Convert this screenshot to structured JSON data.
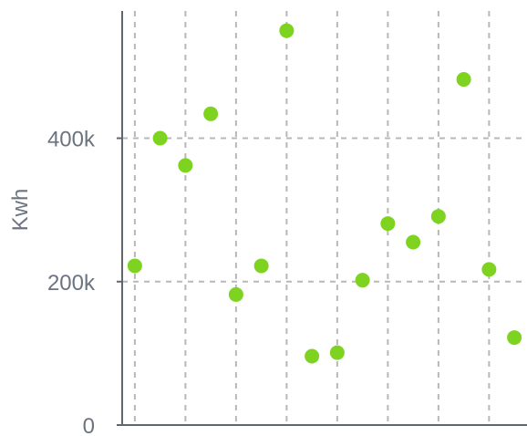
{
  "chart_data": {
    "type": "scatter",
    "title": "",
    "xlabel": "",
    "ylabel": "Kwh",
    "x": [
      0,
      1,
      2,
      3,
      4,
      5,
      6,
      7,
      8,
      9,
      10,
      11,
      12,
      13,
      14,
      15
    ],
    "y": [
      222000,
      400000,
      362000,
      434000,
      182000,
      222000,
      550000,
      96000,
      101000,
      202000,
      281000,
      255000,
      291000,
      482000,
      217000,
      122000
    ],
    "xlim": [
      -0.5,
      15.5
    ],
    "ylim": [
      0,
      580000
    ],
    "yticks": [
      0,
      200000,
      400000
    ],
    "ytick_labels": [
      "0",
      "200k",
      "400k"
    ],
    "x_gridlines": [
      0,
      2,
      4,
      6,
      8,
      10,
      12,
      14
    ],
    "y_gridlines": [
      200000,
      400000
    ],
    "grid": true,
    "legend": "none",
    "colors": {
      "point": "#7ed321",
      "grid": "#b8b8b8",
      "axis": "#5f6670",
      "text": "#6b7480"
    }
  }
}
